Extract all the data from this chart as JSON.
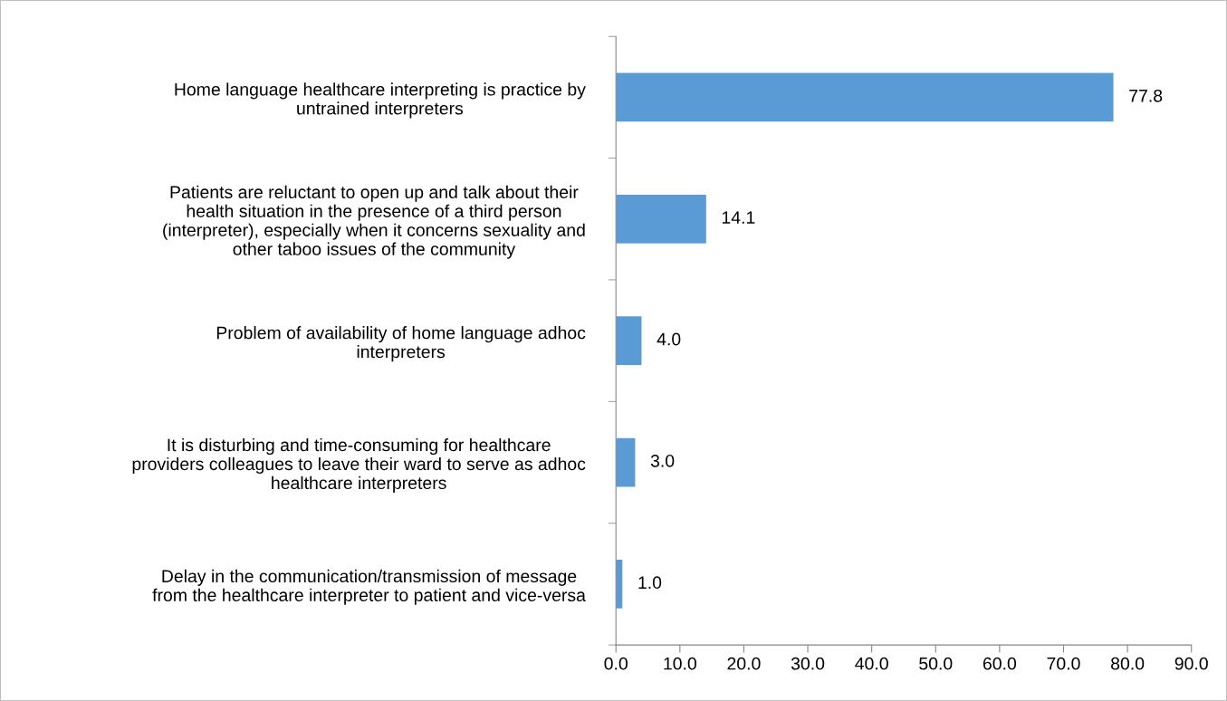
{
  "chart_data": {
    "type": "bar",
    "orientation": "horizontal",
    "categories": [
      "Home language healthcare interpreting is practice by\nuntrained interpreters",
      "Patients are reluctant to open up and talk about their\nhealth situation in the presence of a third person\n(interpreter), especially when it concerns sexuality and\nother taboo issues of the community",
      "Problem of availability of home language adhoc\ninterpreters",
      "It is disturbing and time-consuming for healthcare\nproviders colleagues to leave their ward to serve as adhoc\nhealthcare interpreters",
      "Delay in the communication/transmission of message\nfrom the healthcare interpreter to patient and vice-versa"
    ],
    "values": [
      77.8,
      14.1,
      4.0,
      3.0,
      1.0
    ],
    "value_labels": [
      "77.8",
      "14.1",
      "4.0",
      "3.0",
      "1.0"
    ],
    "color": "#5b9bd5",
    "xlim": [
      0,
      90
    ],
    "xticks": [
      {
        "value": 0,
        "label": "0.0"
      },
      {
        "value": 10,
        "label": "10.0"
      },
      {
        "value": 20,
        "label": "20.0"
      },
      {
        "value": 30,
        "label": "30.0"
      },
      {
        "value": 40,
        "label": "40.0"
      },
      {
        "value": 50,
        "label": "50.0"
      },
      {
        "value": 60,
        "label": "60.0"
      },
      {
        "value": 70,
        "label": "70.0"
      },
      {
        "value": 80,
        "label": "80.0"
      },
      {
        "value": 90,
        "label": "90.0"
      }
    ],
    "grid": false,
    "legend": false
  }
}
